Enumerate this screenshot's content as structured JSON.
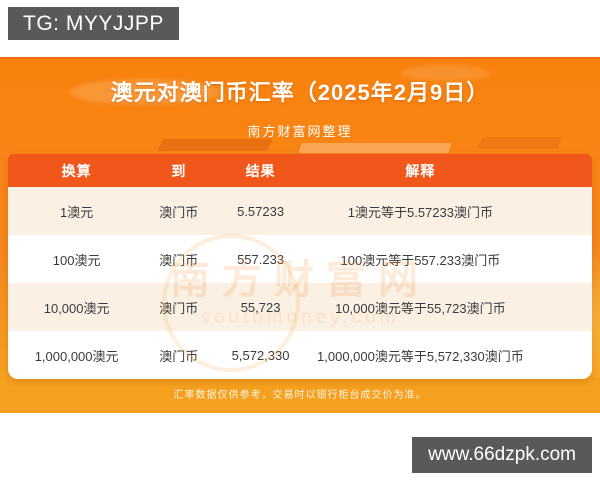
{
  "top_bar": {
    "tg_badge": "TG: MYYJJPP"
  },
  "header": {
    "title": "澳元对澳门币汇率（2025年2月9日）",
    "subtitle": "南方财富网整理"
  },
  "table": {
    "columns": [
      "换算",
      "到",
      "结果",
      "解释"
    ],
    "rows": [
      [
        "1澳元",
        "澳门币",
        "5.57233",
        "1澳元等于5.57233澳门币"
      ],
      [
        "100澳元",
        "澳门币",
        "557.233",
        "100澳元等于557.233澳门币"
      ],
      [
        "10,000澳元",
        "澳门币",
        "55,723",
        "10,000澳元等于55,723澳门币"
      ],
      [
        "1,000,000澳元",
        "澳门币",
        "5,572,330",
        "1,000,000澳元等于5,572,330澳门币"
      ]
    ]
  },
  "watermark": {
    "line1": "南方财富网",
    "line2": "southmoney.com"
  },
  "footer": {
    "disclaimer": "汇率数据仅供参考，交易时以银行柜台成交价为准。"
  },
  "bottom_bar": {
    "site_badge": "www.66dzpk.com"
  },
  "colors": {
    "main_orange_top": "#F8820D",
    "main_orange_bottom": "#F5A01E",
    "table_header": "#F1571B",
    "row_alternate": "#FAF0E4",
    "badge_gray": "#595959",
    "cell_text": "#3B3B3B",
    "text_white": "#FFFFFF"
  },
  "chart_data": {
    "type": "table",
    "title": "澳元对澳门币汇率（2025年2月9日）",
    "subtitle": "南方财富网整理",
    "date": "2025年2月9日",
    "base_currency": "澳元",
    "quote_currency": "澳门币",
    "unit_rate": 5.57233,
    "columns": [
      "换算",
      "到",
      "结果",
      "解释"
    ],
    "rows": [
      {
        "换算": "1澳元",
        "到": "澳门币",
        "结果": "5.57233",
        "解释": "1澳元等于5.57233澳门币"
      },
      {
        "换算": "100澳元",
        "到": "澳门币",
        "结果": "557.233",
        "解释": "100澳元等于557.233澳门币"
      },
      {
        "换算": "10,000澳元",
        "到": "澳门币",
        "结果": "55,723",
        "解释": "10,000澳元等于55,723澳门币"
      },
      {
        "换算": "1,000,000澳元",
        "到": "澳门币",
        "结果": "5,572,330",
        "解释": "1,000,000澳元等于5,572,330澳门币"
      }
    ],
    "note": "汇率数据仅供参考，交易时以银行柜台成交价为准。"
  }
}
